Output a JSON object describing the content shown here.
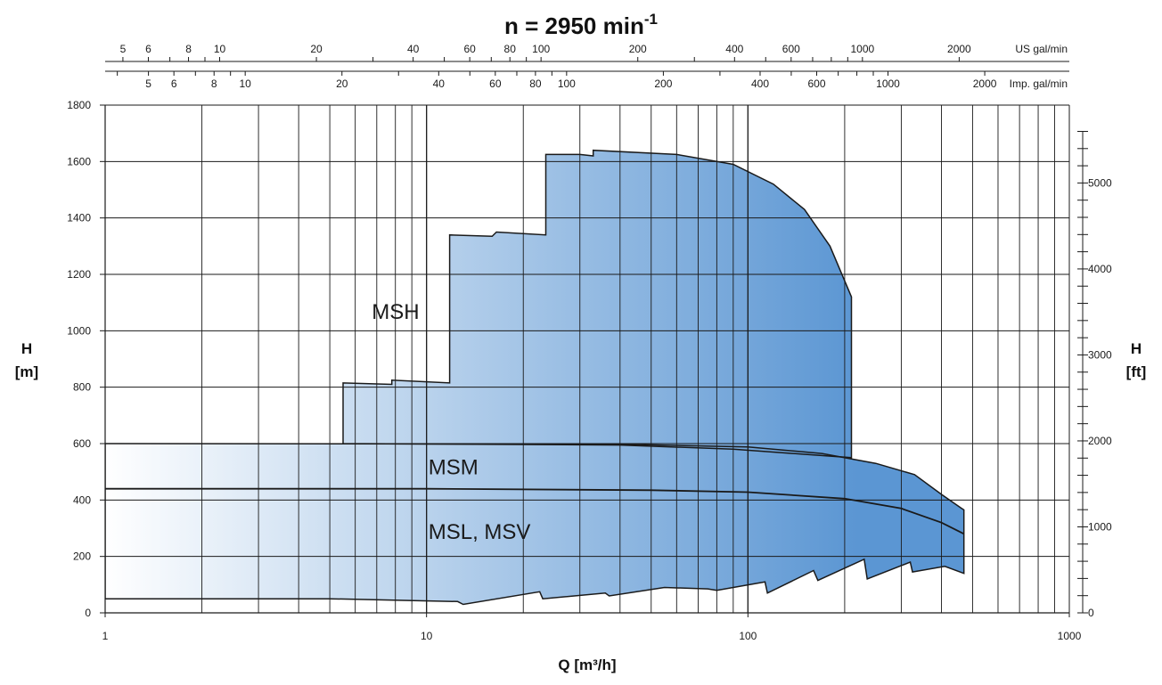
{
  "chart_data": {
    "type": "area",
    "title_prefix": "n = 2950 min",
    "title_sup": "-1",
    "xlabel": "Q [m³/h]",
    "ylabel_left": [
      "H",
      "[m]"
    ],
    "ylabel_right": [
      "H",
      "[ft]"
    ],
    "x_scale": "log",
    "xlim": [
      1,
      1000
    ],
    "ylim": [
      0,
      1800
    ],
    "x_ticks": [
      1,
      10,
      100,
      1000
    ],
    "x_tick_labels": [
      "1",
      "10",
      "100",
      "1000"
    ],
    "y_ticks": [
      0,
      200,
      400,
      600,
      800,
      1000,
      1200,
      1400,
      1600,
      1800
    ],
    "y_tick_labels": [
      "0",
      "200",
      "400",
      "600",
      "800",
      "1000",
      "1200",
      "1400",
      "1600",
      "1800"
    ],
    "ft_ticks": [
      0,
      1000,
      2000,
      3000,
      4000,
      5000
    ],
    "ft_tick_labels": [
      "0",
      "1000",
      "2000",
      "3000",
      "4000",
      "5000"
    ],
    "us_gal_axis": {
      "unit_label": "US gal/min",
      "labels": [
        "5",
        "6",
        "8",
        "10",
        "20",
        "40",
        "60",
        "80",
        "100",
        "200",
        "400",
        "600",
        "1000",
        "2000"
      ],
      "values": [
        5,
        6,
        8,
        10,
        20,
        40,
        60,
        80,
        100,
        200,
        400,
        600,
        1000,
        2000
      ]
    },
    "imp_gal_axis": {
      "unit_label": "Imp. gal/min",
      "labels": [
        "5",
        "6",
        "8",
        "10",
        "20",
        "40",
        "60",
        "80",
        "100",
        "200",
        "400",
        "600",
        "1000",
        "2000"
      ],
      "values": [
        5,
        6,
        8,
        10,
        20,
        40,
        60,
        80,
        100,
        200,
        400,
        600,
        1000,
        2000
      ]
    },
    "grid": true,
    "fill_gradient": [
      "#ffffff",
      "#5b96d3"
    ],
    "series": [
      {
        "name": "MSH",
        "label_at": [
          12,
          1070
        ],
        "points": [
          [
            5.5,
            600
          ],
          [
            5.5,
            815
          ],
          [
            7.8,
            810
          ],
          [
            7.8,
            825
          ],
          [
            11.8,
            815
          ],
          [
            11.8,
            1340
          ],
          [
            16,
            1335
          ],
          [
            16.5,
            1350
          ],
          [
            23.5,
            1340
          ],
          [
            23.5,
            1625
          ],
          [
            30,
            1625
          ],
          [
            33,
            1620
          ],
          [
            33,
            1640
          ],
          [
            60,
            1625
          ],
          [
            90,
            1590
          ],
          [
            120,
            1520
          ],
          [
            150,
            1430
          ],
          [
            180,
            1300
          ],
          [
            210,
            1120
          ],
          [
            210,
            550
          ],
          [
            90,
            580
          ],
          [
            40,
            595
          ],
          [
            5.5,
            600
          ]
        ]
      },
      {
        "name": "MSM",
        "label_at": [
          18,
          520
        ],
        "points": [
          [
            1,
            600
          ],
          [
            40,
            598
          ],
          [
            100,
            588
          ],
          [
            170,
            565
          ],
          [
            250,
            530
          ],
          [
            330,
            490
          ],
          [
            400,
            420
          ],
          [
            460,
            372
          ],
          [
            470,
            365
          ],
          [
            470,
            140
          ],
          [
            410,
            165
          ],
          [
            325,
            145
          ],
          [
            320,
            180
          ],
          [
            235,
            120
          ],
          [
            230,
            190
          ],
          [
            165,
            115
          ],
          [
            160,
            150
          ],
          [
            115,
            70
          ],
          [
            113,
            110
          ],
          [
            80,
            80
          ],
          [
            75,
            85
          ],
          [
            55,
            90
          ],
          [
            37,
            60
          ],
          [
            36,
            70
          ],
          [
            23,
            50
          ],
          [
            22.5,
            75
          ],
          [
            13,
            30
          ],
          [
            12.5,
            40
          ],
          [
            5,
            50
          ],
          [
            1,
            50
          ]
        ]
      },
      {
        "name": "MSL, MSV",
        "label_at": [
          18,
          290
        ],
        "points": [
          [
            1,
            440
          ],
          [
            10,
            440
          ],
          [
            50,
            435
          ],
          [
            100,
            428
          ],
          [
            200,
            405
          ],
          [
            300,
            370
          ],
          [
            400,
            320
          ],
          [
            470,
            280
          ]
        ]
      }
    ]
  }
}
